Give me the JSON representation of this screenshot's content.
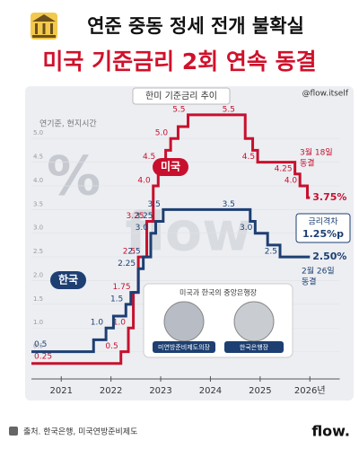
{
  "header": {
    "title": "연준 중동 정세 전개 불확실",
    "subtitle": "미국 기준금리 2회 연속 동결"
  },
  "chart_data": {
    "type": "step-line",
    "title": "한미 기준금리 추이",
    "source_handle": "@flow.itself",
    "note": "연기준, 현지시간",
    "xlim": [
      2020.4,
      2026.6
    ],
    "xticks": [
      2021,
      2022,
      2023,
      2024,
      2025,
      {
        "value": 2026,
        "label": "2026년"
      }
    ],
    "ylim": [
      0,
      5.8
    ],
    "yticks": [
      0.5,
      {
        "value": 1,
        "label": "1.0"
      },
      1.5,
      {
        "value": 2,
        "label": "2.0"
      },
      2.5,
      {
        "value": 3,
        "label": "3.0"
      },
      3.5,
      {
        "value": 4,
        "label": "4.0"
      },
      4.5,
      {
        "value": 5,
        "label": "5.0"
      }
    ],
    "series": [
      {
        "name": "미국",
        "color": "#c8102e",
        "x": [
          2020.4,
          2022.2,
          2022.35,
          2022.45,
          2022.55,
          2022.72,
          2022.85,
          2022.95,
          2023.1,
          2023.2,
          2023.35,
          2023.55,
          2024.55,
          2024.7,
          2024.85,
          2024.95,
          2025.7,
          2025.8,
          2025.95,
          2026.0
        ],
        "values": [
          0.25,
          0.5,
          1.0,
          1.75,
          2.5,
          3.25,
          4.0,
          4.5,
          4.75,
          5.0,
          5.25,
          5.5,
          5.5,
          5.0,
          4.75,
          4.5,
          4.25,
          4.0,
          3.75,
          3.75
        ],
        "value_labels": [
          "0.25",
          "0.5",
          "1.0",
          "1.75",
          "2.5",
          "3.25",
          "4.0",
          "4.5",
          null,
          "5.0",
          null,
          "5.5",
          "5.5",
          null,
          null,
          "4.5",
          "4.25",
          "4.0",
          null,
          "3.75%"
        ]
      },
      {
        "name": "한국",
        "color": "#1d3f72",
        "x": [
          2020.4,
          2021.65,
          2021.9,
          2022.05,
          2022.3,
          2022.4,
          2022.55,
          2022.65,
          2022.8,
          2022.9,
          2023.05,
          2024.55,
          2024.8,
          2024.9,
          2025.15,
          2025.4,
          2026.0
        ],
        "values": [
          0.5,
          0.75,
          1.0,
          1.25,
          1.5,
          1.75,
          2.25,
          2.5,
          3.0,
          3.25,
          3.5,
          3.5,
          3.25,
          3.0,
          2.75,
          2.5,
          2.5
        ],
        "value_labels": [
          "0.5",
          null,
          "1.0",
          null,
          "1.5",
          null,
          "2.25",
          "2.5",
          "3.0",
          "3.25",
          "3.5",
          "3.5",
          null,
          "3.0",
          null,
          "2.5",
          "2.50%"
        ]
      }
    ],
    "annotations": {
      "us_hold": [
        "3월 18일",
        "동결"
      ],
      "gap_label": "금리격차",
      "gap": "1.25%p",
      "kr_hold": [
        "2월 26일",
        "동결"
      ]
    },
    "watermarks": [
      "%",
      "flow"
    ]
  },
  "inset": {
    "title": "미국과 한국의 중앙은행장",
    "people": [
      "미연방준비제도의장",
      "한국은행장"
    ]
  },
  "footer": {
    "source": "출처. 한국은행, 미국연방준비제도",
    "logo": "flow."
  }
}
